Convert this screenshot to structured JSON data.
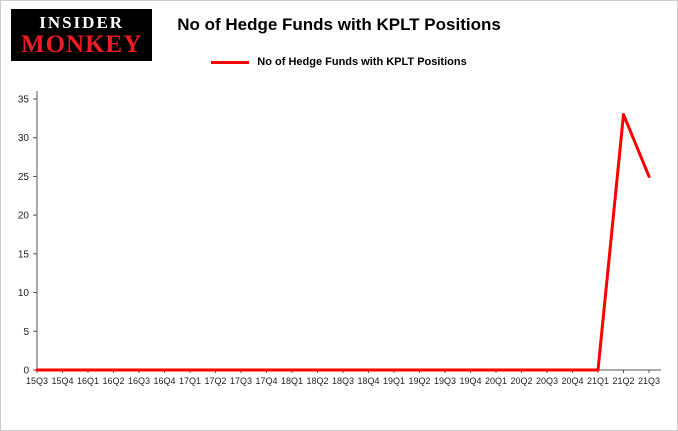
{
  "header": {
    "logo_line1": "INSIDER",
    "logo_line2": "MONKEY",
    "title": "No of Hedge Funds with KPLT Positions"
  },
  "legend": {
    "label": "No of Hedge Funds with KPLT Positions",
    "color": "#fe0000"
  },
  "chart_data": {
    "type": "line",
    "title": "No of Hedge Funds with KPLT Positions",
    "categories": [
      "15Q3",
      "15Q4",
      "16Q1",
      "16Q2",
      "16Q3",
      "16Q4",
      "17Q1",
      "17Q2",
      "17Q3",
      "17Q4",
      "18Q1",
      "18Q2",
      "18Q3",
      "18Q4",
      "19Q1",
      "19Q2",
      "19Q3",
      "19Q4",
      "20Q1",
      "20Q2",
      "20Q3",
      "20Q4",
      "21Q1",
      "21Q2",
      "21Q3"
    ],
    "series": [
      {
        "name": "No of Hedge Funds with KPLT Positions",
        "values": [
          0,
          0,
          0,
          0,
          0,
          0,
          0,
          0,
          0,
          0,
          0,
          0,
          0,
          0,
          0,
          0,
          0,
          0,
          0,
          0,
          0,
          0,
          0,
          33,
          25
        ]
      }
    ],
    "xlabel": "",
    "ylabel": "",
    "ylim": [
      0,
      35
    ],
    "yticks": [
      0,
      5,
      10,
      15,
      20,
      25,
      30,
      35
    ],
    "line_color": "#fe0000",
    "axis_color": "#555555",
    "grid": false,
    "legend_position": "top"
  }
}
